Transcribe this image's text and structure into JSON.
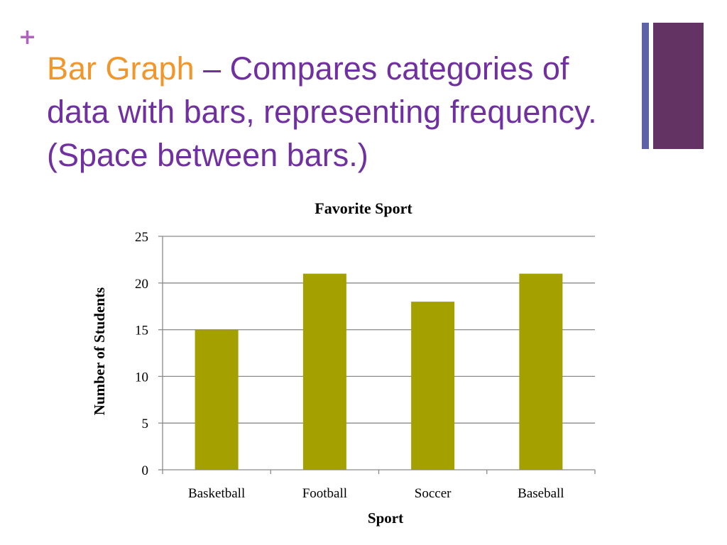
{
  "slide": {
    "bullet": "+",
    "title_highlight": "Bar Graph",
    "title_rest": " – Compares categories of data with bars, representing frequency.  (Space between bars.)"
  },
  "colors": {
    "accent_orange": "#F0962A",
    "accent_purple": "#7030A0",
    "bullet_purple": "#B061C8",
    "deco_thin": "#5E62A6",
    "deco_thick": "#633363",
    "bar_fill": "#A3A000",
    "grid": "#8A8A8A"
  },
  "chart_data": {
    "type": "bar",
    "title": "Favorite Sport",
    "xlabel": "Sport",
    "ylabel": "Number of Students",
    "categories": [
      "Basketball",
      "Football",
      "Soccer",
      "Baseball"
    ],
    "values": [
      15,
      21,
      18,
      21
    ],
    "ylim": [
      0,
      25
    ],
    "yticks": [
      0,
      5,
      10,
      15,
      20,
      25
    ],
    "grid": true,
    "legend": "none"
  }
}
